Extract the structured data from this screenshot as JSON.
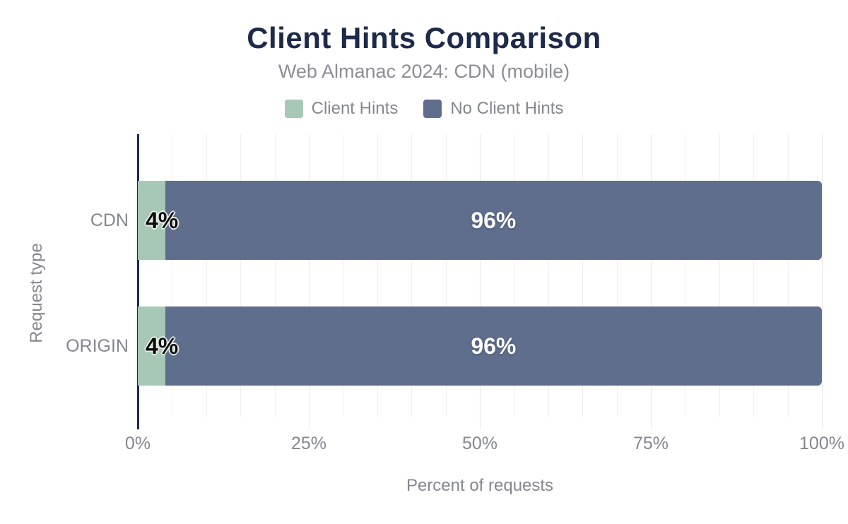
{
  "chart_data": {
    "type": "bar",
    "orientation": "horizontal",
    "stacked": true,
    "title": "Client Hints Comparison",
    "subtitle": "Web Almanac 2024: CDN (mobile)",
    "categories": [
      "CDN",
      "ORIGIN"
    ],
    "series": [
      {
        "name": "Client Hints",
        "color": "#a7c8b5",
        "values": [
          4,
          4
        ],
        "labels": [
          "4%",
          "4%"
        ]
      },
      {
        "name": "No Client Hints",
        "color": "#5f6e8c",
        "values": [
          96,
          96
        ],
        "labels": [
          "96%",
          "96%"
        ]
      }
    ],
    "xlabel": "Percent of requests",
    "ylabel": "Request type",
    "xlim": [
      0,
      100
    ],
    "x_tick_values": [
      0,
      25,
      50,
      75,
      100
    ],
    "x_tick_labels": [
      "0%",
      "25%",
      "50%",
      "75%",
      "100%"
    ],
    "minor_grid_step_percent": 5,
    "grid": true,
    "legend_position": "top"
  },
  "colors": {
    "title": "#1d2a49",
    "subtitle": "#8b8e96",
    "axis_text": "#85878f",
    "axis_line": "#1b2b4a",
    "grid_minor": "#f0f0f3",
    "grid_major": "#e7e7ec",
    "label_dark": "#0a0b0d",
    "label_light": "#ffffff",
    "halo": "#e9efe9"
  }
}
